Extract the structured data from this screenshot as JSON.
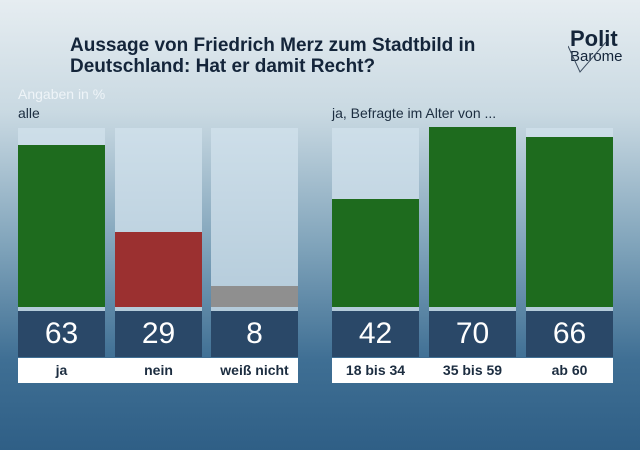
{
  "chart_data": [
    {
      "type": "bar",
      "subtitle": "alle",
      "unit_label": "Angaben in %",
      "categories": [
        "ja",
        "nein",
        "weiß nicht"
      ],
      "values": [
        63,
        29,
        8
      ],
      "colors": [
        "#1e6b1e",
        "#9b3030",
        "#8f8f8f"
      ]
    },
    {
      "type": "bar",
      "subtitle": "ja, Befragte im Alter von ...",
      "categories": [
        "18 bis 34",
        "35 bis 59",
        "ab 60"
      ],
      "values": [
        42,
        70,
        66
      ],
      "colors": [
        "#1e6b1e",
        "#1e6b1e",
        "#1e6b1e"
      ]
    }
  ],
  "title": "Aussage von Friedrich Merz zum Stadtbild in Deutschland: Hat er damit Recht?",
  "logo": {
    "line1": "Polit",
    "line2": "Barome"
  }
}
